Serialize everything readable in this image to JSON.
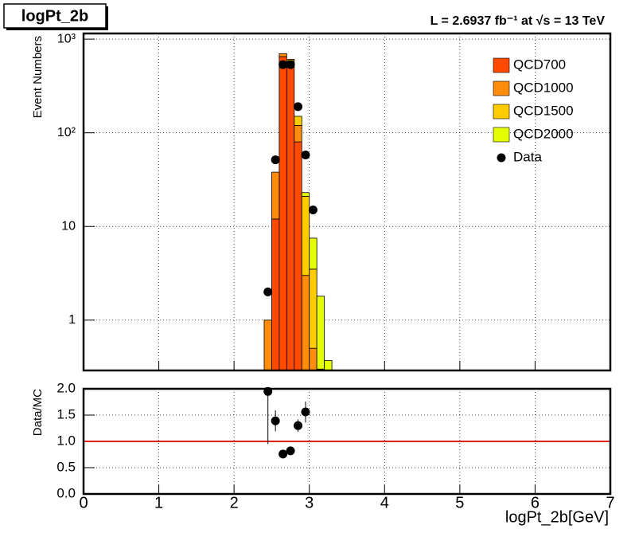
{
  "chart_data": [
    {
      "type": "histogram",
      "title": "logPt_2b",
      "subtitle": "L = 2.6937 fb⁻¹ at  √s = 13 TeV",
      "y_label": "Event Numbers",
      "bins": [
        2.4,
        2.5,
        2.6,
        2.7,
        2.8,
        2.9,
        3.0,
        3.1,
        3.2,
        3.3
      ],
      "stacked": true,
      "series": [
        {
          "name": "QCD700",
          "color": "#ff4a00",
          "values": [
            0,
            12,
            650,
            500,
            80,
            0,
            0,
            0,
            0
          ]
        },
        {
          "name": "QCD1000",
          "color": "#ff8c0a",
          "values": [
            1,
            26,
            50,
            90,
            40,
            3,
            0.5,
            0,
            0
          ]
        },
        {
          "name": "QCD1500",
          "color": "#ffcc00",
          "values": [
            0,
            0,
            0,
            20,
            30,
            18,
            3,
            0.3,
            0
          ]
        },
        {
          "name": "QCD2000",
          "color": "#e5ff00",
          "values": [
            0,
            0,
            0,
            0,
            0,
            2,
            4,
            1.5,
            0.37
          ]
        }
      ],
      "points": {
        "name": "Data",
        "color": "#000000",
        "x": [
          2.45,
          2.55,
          2.65,
          2.75,
          2.85,
          2.95,
          3.05
        ],
        "values": [
          2,
          51.5,
          535,
          535,
          190,
          58,
          15
        ]
      },
      "xlim": [
        0,
        7
      ],
      "xticks": [
        0,
        1,
        2,
        3,
        4,
        5,
        6,
        7
      ],
      "ylim": [
        0.29,
        1150
      ],
      "log_y": true,
      "yticks": [
        1,
        10,
        {
          "value": 100,
          "label": "10²"
        },
        {
          "value": 1000,
          "label": "10³"
        }
      ],
      "grid": true,
      "legend": "top-right"
    },
    {
      "type": "scatter",
      "x_label": "logPt_2b[GeV]",
      "y_label": "Data/MC",
      "x": [
        2.45,
        2.55,
        2.65,
        2.75,
        2.85,
        2.95
      ],
      "values": [
        1.95,
        1.39,
        0.76,
        0.82,
        1.3,
        1.56
      ],
      "errors": [
        1.0,
        0.2,
        0.05,
        0.05,
        0.12,
        0.2
      ],
      "color": "#000000",
      "reference_line": {
        "value": 1,
        "color": "#e8201a"
      },
      "xlim": [
        0,
        7
      ],
      "xticks": [
        0,
        1,
        2,
        3,
        4,
        5,
        6,
        7
      ],
      "ylim": [
        0,
        2
      ],
      "yticks": [
        {
          "value": 0,
          "label": "0.0"
        },
        0.5,
        {
          "value": 1,
          "label": "1.0"
        },
        1.5,
        {
          "value": 2,
          "label": "2.0"
        }
      ],
      "grid": true
    }
  ]
}
